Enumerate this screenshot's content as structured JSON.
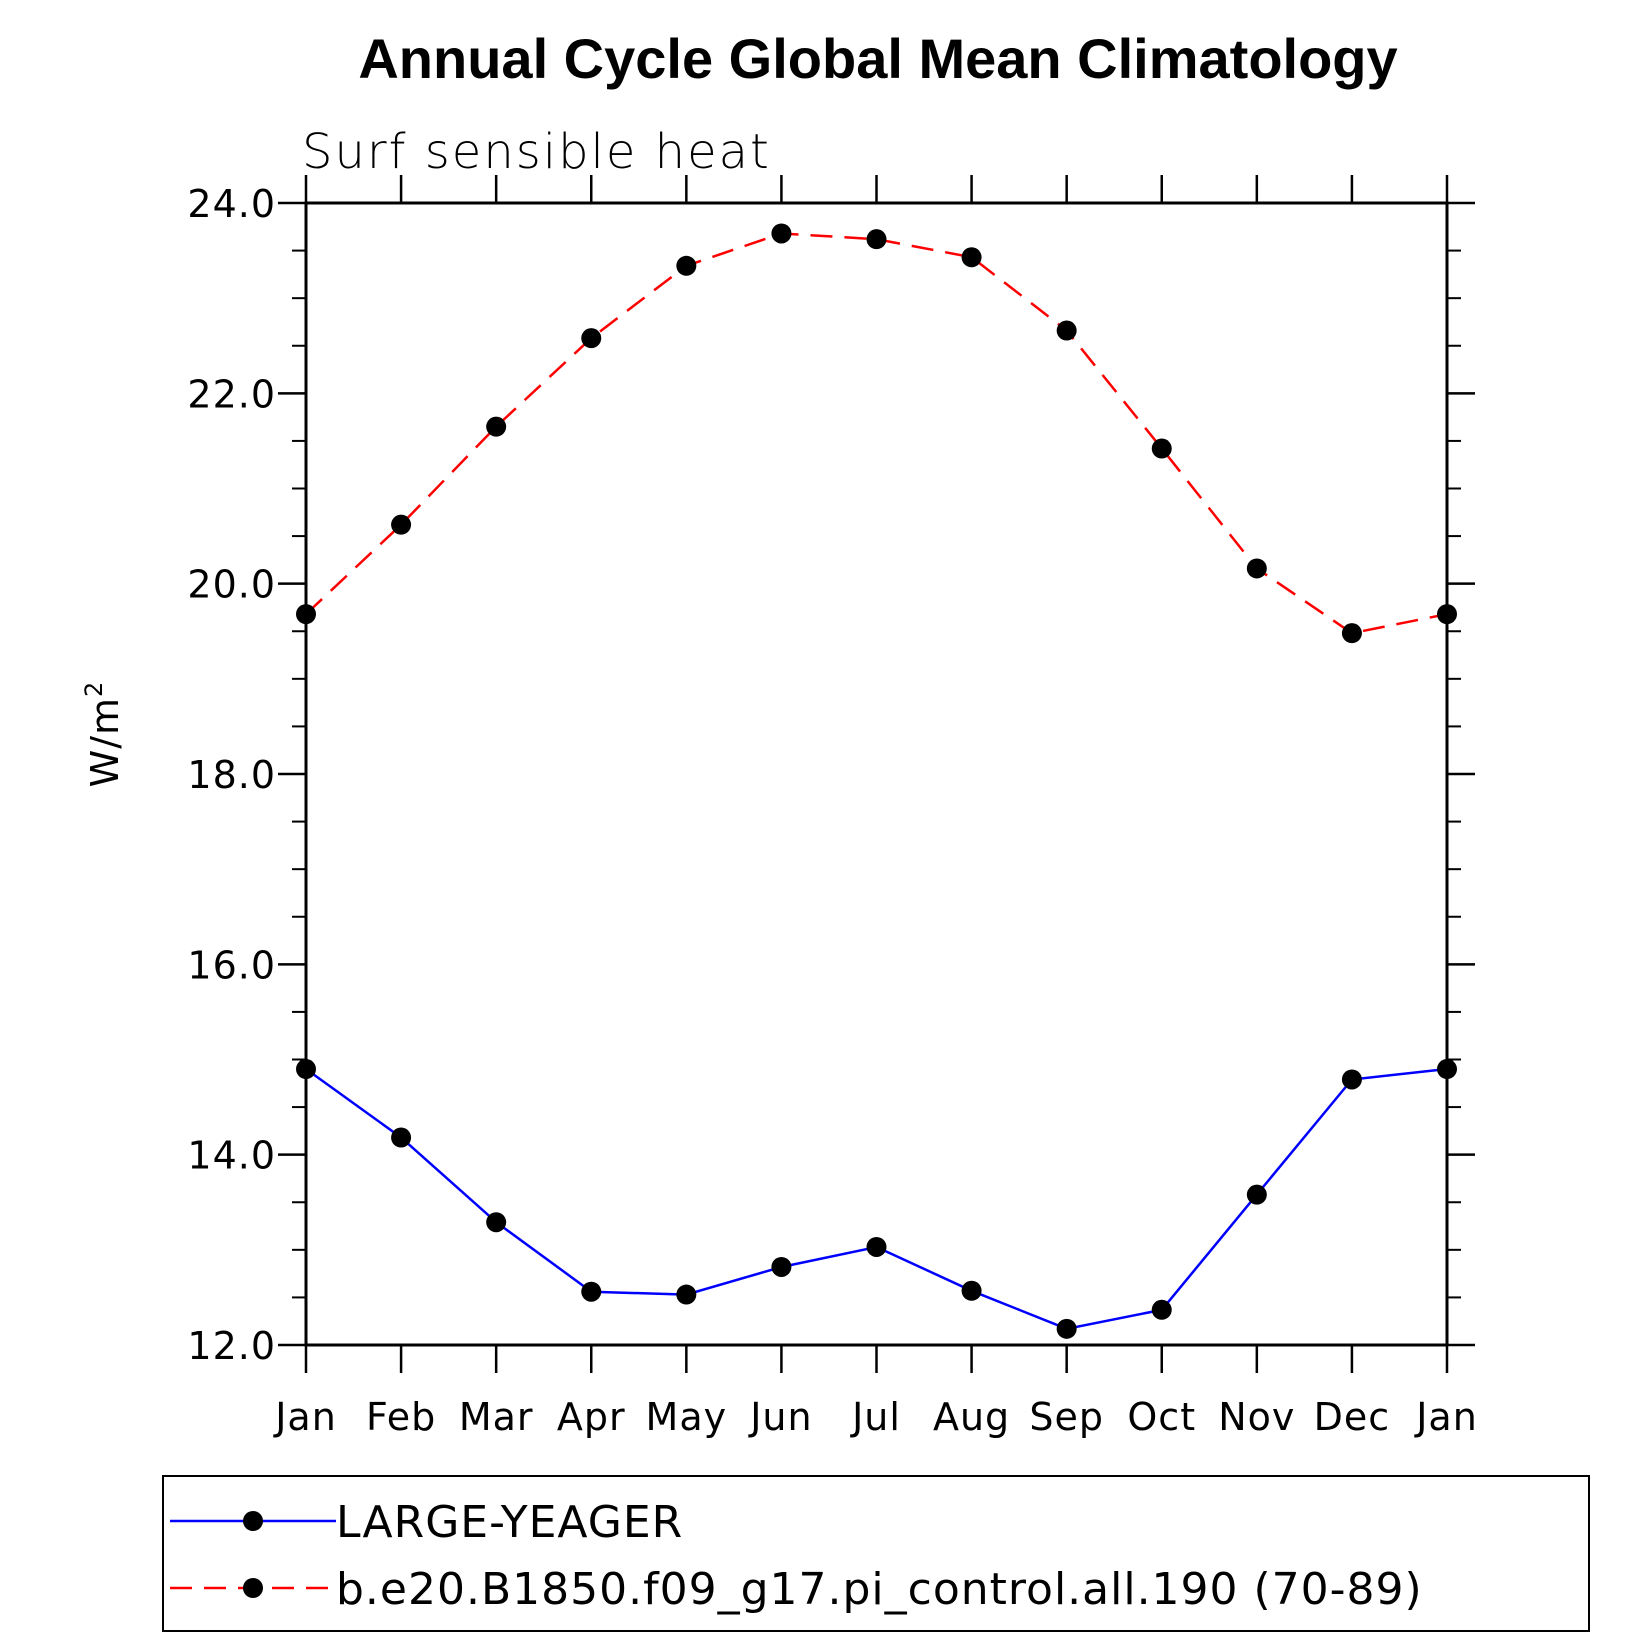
{
  "chart_data": {
    "type": "line",
    "title": "Annual Cycle Global Mean Climatology",
    "subtitle": "Surf sensible heat",
    "ylabel": "W/m",
    "ylabel_superscript": "2",
    "xlabel": "",
    "categories": [
      "Jan",
      "Feb",
      "Mar",
      "Apr",
      "May",
      "Jun",
      "Jul",
      "Aug",
      "Sep",
      "Oct",
      "Nov",
      "Dec",
      "Jan"
    ],
    "ylim": [
      12.0,
      24.0
    ],
    "yticks": [
      "12.0",
      "14.0",
      "16.0",
      "18.0",
      "20.0",
      "22.0",
      "24.0"
    ],
    "ytick_values": [
      12,
      14,
      16,
      18,
      20,
      22,
      24
    ],
    "legend_placement": "bottom",
    "grid": false,
    "series": [
      {
        "name": "LARGE-YEAGER",
        "color": "#0000ff",
        "linestyle": "solid",
        "marker_color": "#000000",
        "values": [
          14.9,
          14.18,
          13.29,
          12.56,
          12.53,
          12.82,
          13.03,
          12.57,
          12.17,
          12.37,
          13.58,
          14.79,
          14.9
        ]
      },
      {
        "name": "b.e20.B1850.f09_g17.pi_control.all.190 (70-89)",
        "color": "#ff0000",
        "linestyle": "dashed",
        "marker_color": "#000000",
        "values": [
          19.68,
          20.62,
          21.65,
          22.58,
          23.34,
          23.68,
          23.62,
          23.43,
          22.66,
          21.42,
          20.16,
          19.48,
          19.68
        ]
      }
    ]
  }
}
